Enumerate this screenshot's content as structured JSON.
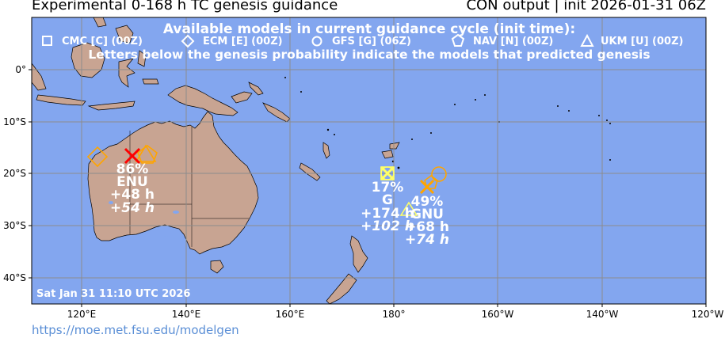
{
  "header": {
    "title_left": "Experimental 0-168 h TC genesis guidance",
    "title_right": "CON output | init 2026-01-31 06Z"
  },
  "legend": {
    "heading": "Available models in current guidance cycle (init time):",
    "models": [
      {
        "symbol": "square-icon",
        "label": "CMC [C] (00Z)"
      },
      {
        "symbol": "diamond-icon",
        "label": "ECM [E] (00Z)"
      },
      {
        "symbol": "circle-icon",
        "label": "GFS [G] (06Z)"
      },
      {
        "symbol": "pentagon-icon",
        "label": "NAV [N] (00Z)"
      },
      {
        "symbol": "triangle-icon",
        "label": "UKM [U] (00Z)"
      }
    ],
    "note": "Letters below the genesis probability indicate the models that predicted genesis"
  },
  "timestamp": "Sat Jan 31 11:10 UTC 2026",
  "footer_url": "https://moe.met.fsu.edu/modelgen",
  "axes": {
    "lon_labels": [
      "120°E",
      "140°E",
      "160°E",
      "180°",
      "160°W",
      "140°W",
      "120°W"
    ],
    "lat_labels": [
      "0°",
      "10°S",
      "20°S",
      "30°S",
      "40°S"
    ]
  },
  "colors": {
    "ocean": "#83a6ef",
    "land": "#c8a492",
    "grid": "#8c8c8c",
    "high_prob": "#ff0000",
    "mid_prob": "#ffa500",
    "low_prob": "#ffff66"
  },
  "systems": [
    {
      "probability": "86%",
      "models": "ENU",
      "time1": "+48 h",
      "time2": "+54 h"
    },
    {
      "probability": "17%",
      "models": "G",
      "time1": "+174 h",
      "time2": "+102 h"
    },
    {
      "probability": "49%",
      "models": "GNU",
      "time1": "+68 h",
      "time2": "+74 h"
    }
  ]
}
